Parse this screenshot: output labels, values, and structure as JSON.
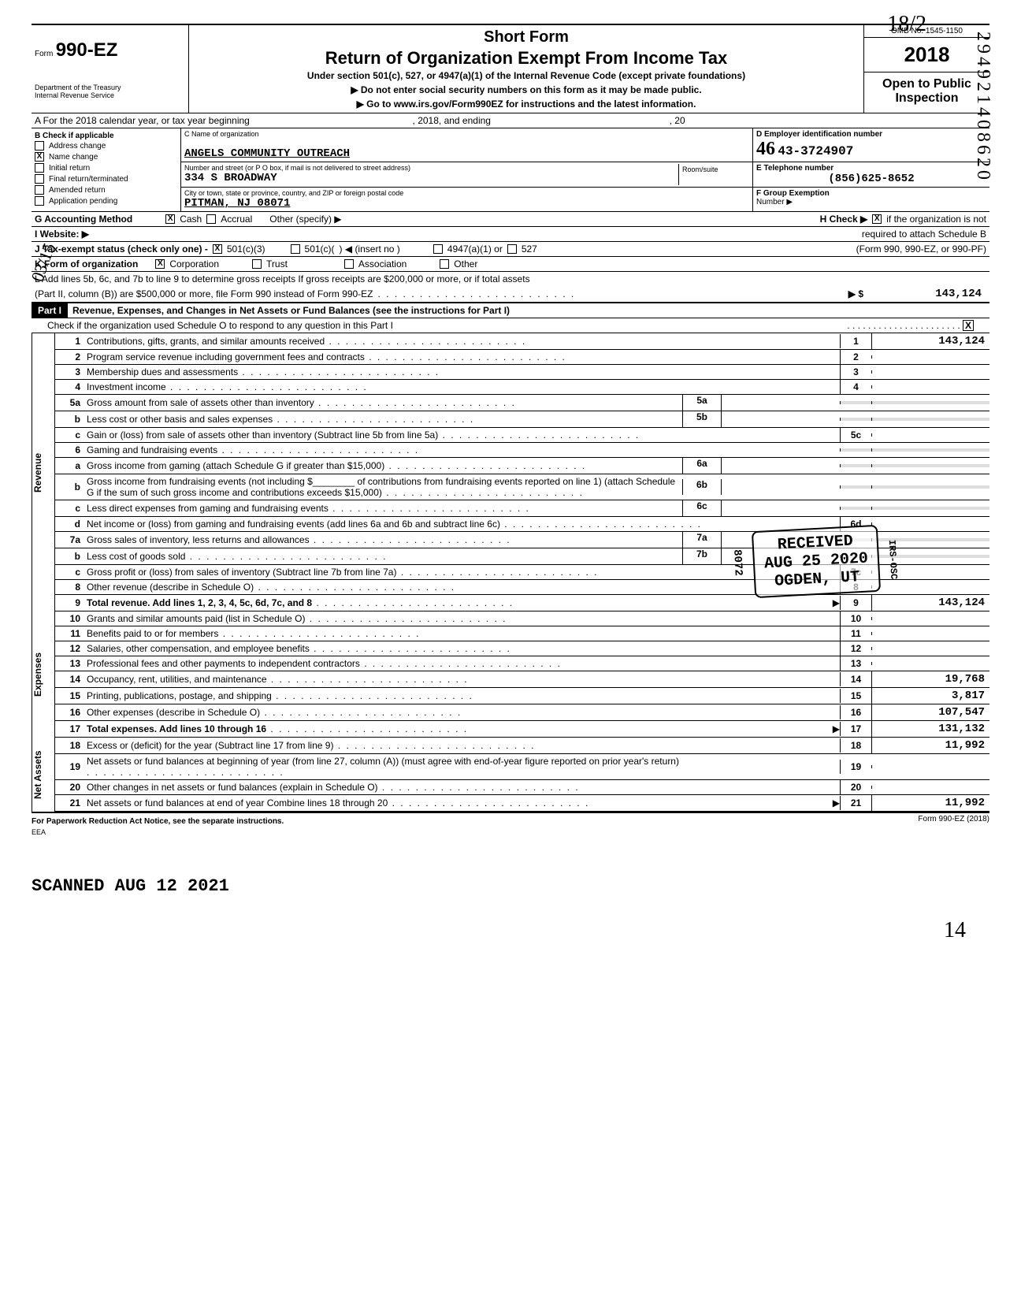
{
  "header": {
    "form_prefix": "Form",
    "form_number": "990-EZ",
    "dept": "Department of the Treasury",
    "irs": "Internal Revenue Service",
    "short_form": "Short Form",
    "main_title": "Return of Organization Exempt From Income Tax",
    "sub_title": "Under section 501(c), 527, or 4947(a)(1) of the Internal Revenue Code (except private foundations)",
    "do_not_enter": "▶  Do not enter social security numbers on this form as it may be made public.",
    "go_to": "▶  Go to www.irs.gov/Form990EZ for instructions and the latest information.",
    "omb": "OMB No. 1545-1150",
    "year": "2018",
    "open_public": "Open to Public",
    "inspection": "Inspection",
    "hand_year": "18/2"
  },
  "line_A": {
    "text_prefix": "A  For the 2018 calendar year, or tax year beginning",
    "mid": ", 2018, and ending",
    "end": ", 20"
  },
  "B": {
    "title": "B  Check if applicable",
    "items": [
      "Address change",
      "Name change",
      "Initial return",
      "Final return/terminated",
      "Amended return",
      "Application pending"
    ],
    "checked_index": 1
  },
  "C": {
    "name_label": "C  Name of organization",
    "name": "ANGELS COMMUNITY OUTREACH",
    "street_label": "Number and street (or P O  box, if mail is not delivered to street address)",
    "room_label": "Room/suite",
    "street": "334 S BROADWAY",
    "city_label": "City or town, state or province, country, and ZIP or foreign postal code",
    "city": "PITMAN,  NJ 08071"
  },
  "D": {
    "label": "D  Employer identification number",
    "value": "46-3724907",
    "hand_prefix": "46"
  },
  "E": {
    "label": "E  Telephone number",
    "value": "(856)625-8652"
  },
  "F": {
    "label": "F  Group Exemption",
    "number_label": "Number  ▶"
  },
  "G": {
    "label": "G  Accounting Method",
    "cash": "Cash",
    "accrual": "Accrual",
    "other": "Other (specify) ▶",
    "cash_checked": true
  },
  "H": {
    "label": "H  Check ▶",
    "text": "if the organization is not",
    "line2": "required to attach Schedule B",
    "line3": "(Form 990, 990-EZ, or 990-PF)",
    "checked": true
  },
  "I": {
    "label": "I   Website:   ▶"
  },
  "J": {
    "label": "J  Tax-exempt status (check only one) -",
    "c3": "501(c)(3)",
    "c": "501(c)(",
    "insert": ")  ◀ (insert no )",
    "a": "4947(a)(1) or",
    "s527": "527",
    "c3_checked": true
  },
  "K": {
    "label": "K  Form of organization",
    "corp": "Corporation",
    "trust": "Trust",
    "assoc": "Association",
    "other": "Other",
    "corp_checked": true
  },
  "L": {
    "line1": "L  Add lines 5b, 6c, and 7b to line 9 to determine gross receipts  If gross receipts are $200,000 or more, or if total assets",
    "line2": "(Part II, column (B)) are $500,000 or more, file Form 990 instead of Form 990-EZ",
    "arrow": "▶ $",
    "value": "143,124"
  },
  "part1": {
    "part_label": "Part I",
    "title": "Revenue, Expenses, and Changes in Net Assets or Fund Balances (see the instructions for Part I)",
    "check_row": "Check if the organization used Schedule O to respond to any question in this Part I",
    "check_checked": true
  },
  "side_labels": {
    "revenue": "Revenue",
    "expenses": "Expenses",
    "netassets": "Net Assets"
  },
  "revenue_lines": [
    {
      "no": "1",
      "text": "Contributions, gifts, grants, and similar amounts received",
      "num": "1",
      "val": "143,124"
    },
    {
      "no": "2",
      "text": "Program service revenue including government fees and contracts",
      "num": "2",
      "val": ""
    },
    {
      "no": "3",
      "text": "Membership dues and assessments",
      "num": "3",
      "val": ""
    },
    {
      "no": "4",
      "text": "Investment income",
      "num": "4",
      "val": ""
    },
    {
      "no": "5a",
      "text": "Gross amount from sale of assets other than inventory",
      "mid": "5a"
    },
    {
      "no": "b",
      "text": "Less  cost or other basis and sales expenses",
      "mid": "5b"
    },
    {
      "no": "c",
      "text": "Gain or (loss) from sale of assets other than inventory (Subtract line 5b from line 5a)",
      "num": "5c",
      "val": ""
    },
    {
      "no": "6",
      "text": "Gaming and fundraising events",
      "shaded": true
    },
    {
      "no": "a",
      "text": "Gross income from gaming (attach Schedule G if greater than $15,000)",
      "mid": "6a"
    },
    {
      "no": "b",
      "text": "Gross income from fundraising events (not including    $________ of contributions from fundraising events reported on line 1) (attach Schedule G if the sum of such gross income and contributions exceeds $15,000)",
      "mid": "6b"
    },
    {
      "no": "c",
      "text": "Less  direct expenses from gaming and fundraising events",
      "mid": "6c"
    },
    {
      "no": "d",
      "text": "Net income or (loss) from gaming and fundraising events (add lines 6a and 6b and subtract line 6c)",
      "num": "6d",
      "val": ""
    },
    {
      "no": "7a",
      "text": "Gross sales of inventory, less returns and allowances",
      "mid": "7a"
    },
    {
      "no": "b",
      "text": "Less  cost of goods sold",
      "mid": "7b"
    },
    {
      "no": "c",
      "text": "Gross profit or (loss) from sales of inventory (Subtract line 7b from line 7a)",
      "num": "7c",
      "val": ""
    },
    {
      "no": "8",
      "text": "Other revenue (describe in Schedule O)",
      "num": "8",
      "val": ""
    },
    {
      "no": "9",
      "text": "Total revenue.  Add lines 1, 2, 3, 4, 5c, 6d, 7c, and 8",
      "num": "9",
      "val": "143,124",
      "arrow": "▶",
      "bold": true
    }
  ],
  "expense_lines": [
    {
      "no": "10",
      "text": "Grants and similar amounts paid (list in Schedule O)",
      "num": "10",
      "val": ""
    },
    {
      "no": "11",
      "text": "Benefits paid to or for members",
      "num": "11",
      "val": ""
    },
    {
      "no": "12",
      "text": "Salaries, other compensation, and employee benefits",
      "num": "12",
      "val": ""
    },
    {
      "no": "13",
      "text": "Professional fees and other payments to independent contractors",
      "num": "13",
      "val": ""
    },
    {
      "no": "14",
      "text": "Occupancy, rent, utilities, and maintenance",
      "num": "14",
      "val": "19,768"
    },
    {
      "no": "15",
      "text": "Printing, publications, postage, and shipping",
      "num": "15",
      "val": "3,817"
    },
    {
      "no": "16",
      "text": "Other expenses (describe in Schedule O)",
      "num": "16",
      "val": "107,547"
    },
    {
      "no": "17",
      "text": "Total expenses.  Add lines 10 through 16",
      "num": "17",
      "val": "131,132",
      "arrow": "▶",
      "bold": true
    }
  ],
  "netasset_lines": [
    {
      "no": "18",
      "text": "Excess or (deficit) for the year (Subtract line 17 from line 9)",
      "num": "18",
      "val": "11,992"
    },
    {
      "no": "19",
      "text": "Net assets or fund balances at beginning of year (from line 27, column (A)) (must agree with end-of-year figure reported on prior year's return)",
      "num": "19",
      "val": ""
    },
    {
      "no": "20",
      "text": "Other changes in net assets or fund balances (explain in Schedule O)",
      "num": "20",
      "val": ""
    },
    {
      "no": "21",
      "text": "Net assets or fund balances at end of year  Combine lines 18 through 20",
      "num": "21",
      "val": "11,992",
      "arrow": "▶"
    }
  ],
  "footer": {
    "left": "For Paperwork Reduction Act Notice, see the separate instructions.",
    "eea": "EEA",
    "right": "Form 990-EZ (2018)"
  },
  "margin_right_vertical": "294921408620",
  "stamps": {
    "received_l1": "RECEIVED",
    "received_l2": "AUG 25 2020",
    "received_l3": "OGDEN, UT",
    "scanned": "SCANNED AUG 12 2021",
    "side_8072": "8072",
    "side_irs": "IRS-OSC"
  },
  "hand": {
    "left_0315": "03/15",
    "page_14": "14"
  }
}
